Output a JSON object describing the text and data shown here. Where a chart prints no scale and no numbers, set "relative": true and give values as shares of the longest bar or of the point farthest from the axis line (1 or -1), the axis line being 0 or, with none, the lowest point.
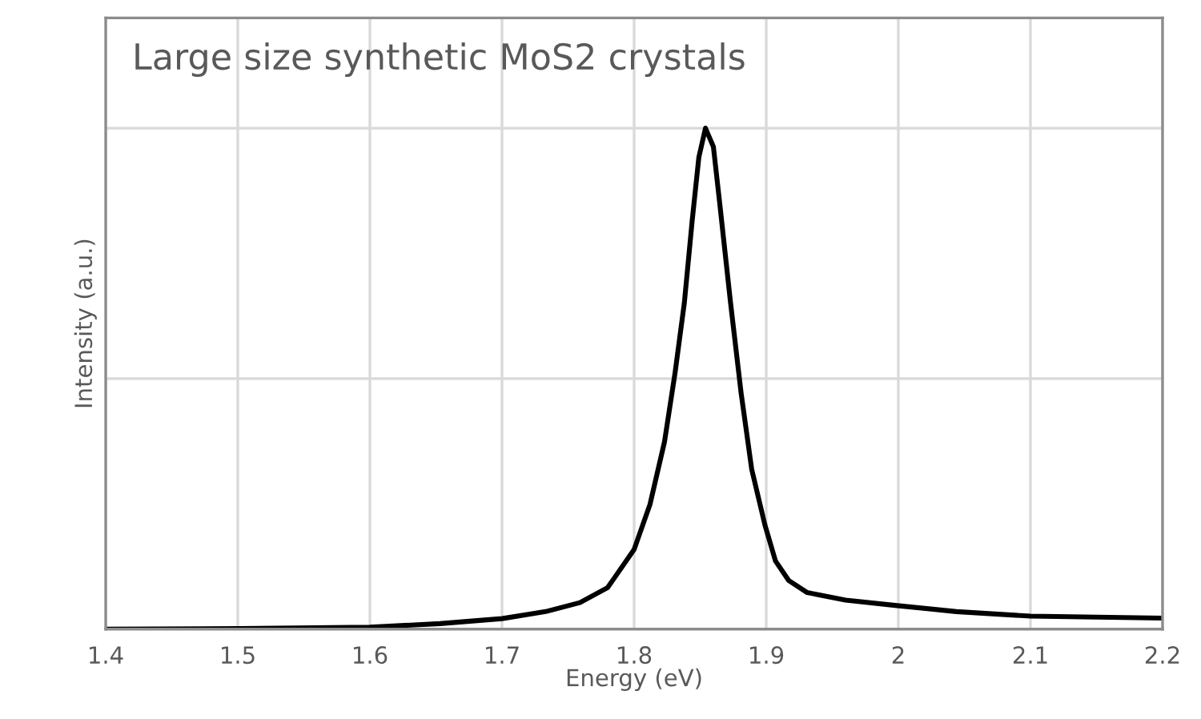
{
  "chart_data": {
    "type": "line",
    "title": "Large size synthetic MoS2 crystals",
    "xlabel": "Energy (eV)",
    "ylabel": "Intensity (a.u.)",
    "relative": true,
    "grid": true,
    "tick_labels": "x",
    "xlim": [
      1.4,
      2.2
    ],
    "xticks": [
      1.4,
      1.5,
      1.6,
      1.7,
      1.8,
      1.9,
      2,
      2.1,
      2.2
    ],
    "marker": "none",
    "line_style": "solid",
    "series": [
      {
        "color": "#000000",
        "x": [
          1.4,
          1.5,
          1.6,
          1.653,
          1.7,
          1.733,
          1.759,
          1.78,
          1.8,
          1.812,
          1.823,
          1.831,
          1.838,
          1.844,
          1.849,
          1.854,
          1.86,
          1.865,
          1.873,
          1.881,
          1.889,
          1.899,
          1.907,
          1.917,
          1.931,
          1.96,
          1.999,
          2.044,
          2.1,
          2.15,
          2.2
        ],
        "values": [
          0,
          0.001,
          0.004,
          0.011,
          0.021,
          0.035,
          0.053,
          0.083,
          0.159,
          0.249,
          0.374,
          0.512,
          0.651,
          0.817,
          0.942,
          1.0,
          0.963,
          0.845,
          0.651,
          0.471,
          0.319,
          0.208,
          0.136,
          0.097,
          0.073,
          0.058,
          0.047,
          0.035,
          0.026,
          0.024,
          0.022
        ]
      }
    ]
  }
}
